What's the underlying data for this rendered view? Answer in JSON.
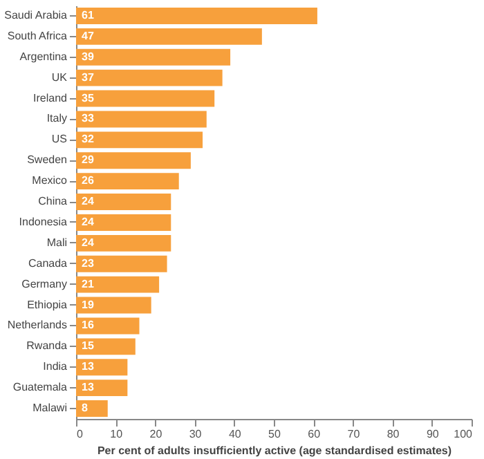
{
  "chart_data": {
    "type": "bar",
    "orientation": "horizontal",
    "xlabel": "Per cent of adults insufficiently active (age standardised estimates)",
    "categories": [
      "Saudi Arabia",
      "South Africa",
      "Argentina",
      "UK",
      "Ireland",
      "Italy",
      "US",
      "Sweden",
      "Mexico",
      "China",
      "Indonesia",
      "Mali",
      "Canada",
      "Germany",
      "Ethiopia",
      "Netherlands",
      "Rwanda",
      "India",
      "Guatemala",
      "Malawi"
    ],
    "values": [
      61,
      47,
      39,
      37,
      35,
      33,
      32,
      29,
      26,
      24,
      24,
      24,
      23,
      21,
      19,
      16,
      15,
      13,
      13,
      8
    ],
    "color": "#f7a03c",
    "xlim": [
      0,
      100
    ],
    "xticks": [
      0,
      10,
      20,
      30,
      40,
      50,
      60,
      70,
      80,
      90,
      100
    ],
    "grid": false,
    "data_labels": true
  }
}
